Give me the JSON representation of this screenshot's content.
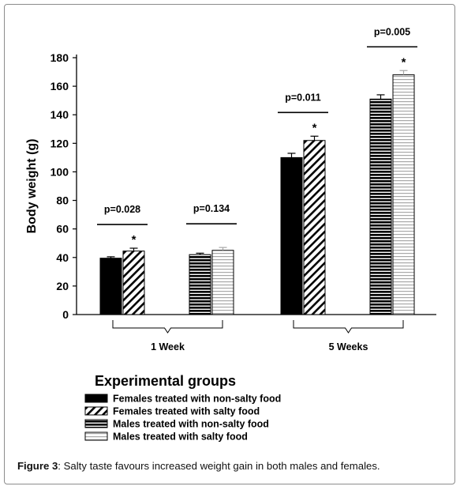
{
  "chart_data": {
    "type": "bar",
    "ylabel": "Body weight (g)",
    "ylim": [
      0,
      180
    ],
    "yticks": [
      0,
      20,
      40,
      60,
      80,
      100,
      120,
      140,
      160,
      180
    ],
    "groups": [
      {
        "label": "1 Week",
        "comparisons": [
          {
            "p": "p=0.028",
            "series": [
              0,
              1
            ]
          },
          {
            "p": "p=0.134",
            "series": [
              2,
              3
            ]
          }
        ]
      },
      {
        "label": "5 Weeks",
        "comparisons": [
          {
            "p": "p=0.011",
            "series": [
              0,
              1
            ]
          },
          {
            "p": "p=0.005",
            "series": [
              2,
              3
            ]
          }
        ]
      }
    ],
    "series": [
      {
        "name": "Females treated with non-salty food",
        "pattern": "solid",
        "values": [
          39.5,
          110
        ],
        "errors": [
          1,
          3
        ],
        "significant": [
          false,
          false
        ]
      },
      {
        "name": "Females treated with salty food",
        "pattern": "diagonal",
        "values": [
          44.5,
          122
        ],
        "errors": [
          2,
          3
        ],
        "significant": [
          true,
          true
        ]
      },
      {
        "name": "Males treated with non-salty food",
        "pattern": "horizontal-dense",
        "values": [
          42,
          151
        ],
        "errors": [
          1,
          3
        ],
        "significant": [
          false,
          false
        ]
      },
      {
        "name": "Males treated with salty food",
        "pattern": "horizontal-light",
        "values": [
          45,
          168
        ],
        "errors": [
          2,
          3
        ],
        "significant": [
          false,
          true
        ]
      }
    ],
    "significance_marker": "*",
    "legend_title": "Experimental groups",
    "legend_position": "bottom-left",
    "colors": {
      "bar_edge": "#000000",
      "light_stripe": "#a8a8a8",
      "frame": "#8c8c8c"
    }
  },
  "caption": {
    "label": "Figure 3",
    "text": ": Salty taste favours increased weight gain in both males and females."
  }
}
